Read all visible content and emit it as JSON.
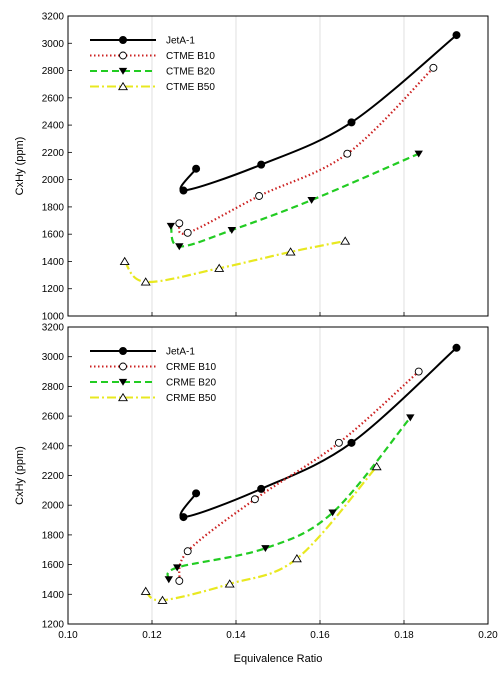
{
  "chart_data": [
    {
      "type": "line",
      "title": "",
      "xlabel": "",
      "ylabel": "CxHy (ppm)",
      "xlim": [
        0.1,
        0.2
      ],
      "ylim": [
        1000,
        3200
      ],
      "yticks": [
        1000,
        1200,
        1400,
        1600,
        1800,
        2000,
        2200,
        2400,
        2600,
        2800,
        3000,
        3200
      ],
      "grid": "vertical",
      "legend": "top-left",
      "series": [
        {
          "name": "JetA-1",
          "color": "#000000",
          "dash": "solid",
          "marker": "filled-circle",
          "x": [
            0.1305,
            0.1275,
            0.146,
            0.1675,
            0.1925
          ],
          "y": [
            2080,
            1920,
            2110,
            2420,
            3060
          ]
        },
        {
          "name": "CTME B10",
          "color": "#cc2222",
          "dash": "dotted",
          "marker": "open-circle",
          "x": [
            0.1265,
            0.1285,
            0.1455,
            0.1665,
            0.187
          ],
          "y": [
            1680,
            1610,
            1880,
            2190,
            2820
          ]
        },
        {
          "name": "CTME B20",
          "color": "#22cc22",
          "dash": "dashed",
          "marker": "filled-triangle-down",
          "x": [
            0.1245,
            0.1265,
            0.139,
            0.158,
            0.1835
          ],
          "y": [
            1660,
            1510,
            1630,
            1850,
            2190
          ]
        },
        {
          "name": "CTME B50",
          "color": "#e8e820",
          "dash": "dashdot",
          "marker": "open-triangle-up",
          "x": [
            0.1135,
            0.1185,
            0.136,
            0.153,
            0.166
          ],
          "y": [
            1400,
            1250,
            1350,
            1470,
            1550
          ]
        }
      ]
    },
    {
      "type": "line",
      "title": "",
      "xlabel": "Equivalence Ratio",
      "ylabel": "CxHy (ppm)",
      "xlim": [
        0.1,
        0.2
      ],
      "ylim": [
        1200,
        3200
      ],
      "xticks": [
        "0.10",
        "0.12",
        "0.14",
        "0.16",
        "0.18",
        "0.20"
      ],
      "yticks": [
        1200,
        1400,
        1600,
        1800,
        2000,
        2200,
        2400,
        2600,
        2800,
        3000,
        3200
      ],
      "grid": "vertical",
      "legend": "top-left",
      "series": [
        {
          "name": "JetA-1",
          "color": "#000000",
          "dash": "solid",
          "marker": "filled-circle",
          "x": [
            0.1305,
            0.1275,
            0.146,
            0.1675,
            0.1925
          ],
          "y": [
            2080,
            1920,
            2110,
            2420,
            3060
          ]
        },
        {
          "name": "CRME B10",
          "color": "#cc2222",
          "dash": "dotted",
          "marker": "open-circle",
          "x": [
            0.1265,
            0.1285,
            0.1445,
            0.1645,
            0.1835
          ],
          "y": [
            1490,
            1690,
            2040,
            2420,
            2900
          ]
        },
        {
          "name": "CRME B20",
          "color": "#22cc22",
          "dash": "dashed",
          "marker": "filled-triangle-down",
          "x": [
            0.124,
            0.126,
            0.147,
            0.163,
            0.1815
          ],
          "y": [
            1500,
            1580,
            1710,
            1950,
            2590
          ]
        },
        {
          "name": "CRME B50",
          "color": "#e8e820",
          "dash": "dashdot",
          "marker": "open-triangle-up",
          "x": [
            0.1185,
            0.1225,
            0.1385,
            0.1545,
            0.1735
          ],
          "y": [
            1420,
            1360,
            1470,
            1640,
            2260
          ]
        }
      ]
    }
  ]
}
